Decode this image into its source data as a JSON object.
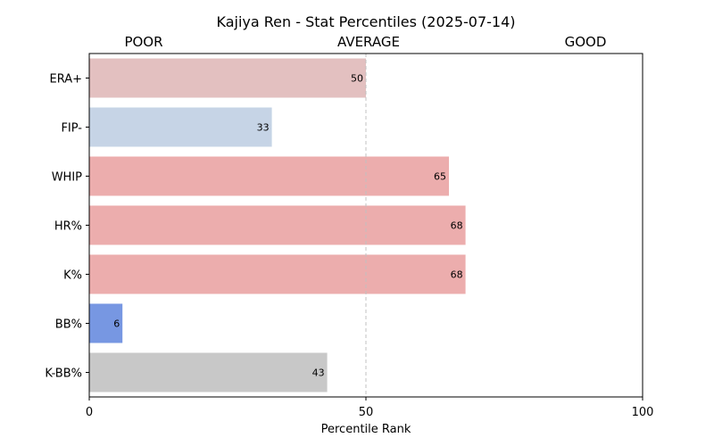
{
  "chart_data": {
    "type": "bar",
    "orientation": "horizontal",
    "title": "Kajiya Ren - Stat Percentiles (2025-07-14)",
    "band_labels": [
      "POOR",
      "AVERAGE",
      "GOOD"
    ],
    "xlabel": "Percentile Rank",
    "ylabel": "",
    "xlim": [
      0,
      100
    ],
    "xticks": [
      0,
      50,
      100
    ],
    "reference_line": 50,
    "categories": [
      "ERA+",
      "FIP-",
      "WHIP",
      "HR%",
      "K%",
      "BB%",
      "K-BB%"
    ],
    "values": [
      50,
      33,
      65,
      68,
      68,
      6,
      43
    ],
    "colors": [
      "#e3c0c0",
      "#c6d4e6",
      "#ecadad",
      "#ecadad",
      "#ecadad",
      "#7797e2",
      "#c8c8c8"
    ],
    "grid": false,
    "legend": "none"
  }
}
